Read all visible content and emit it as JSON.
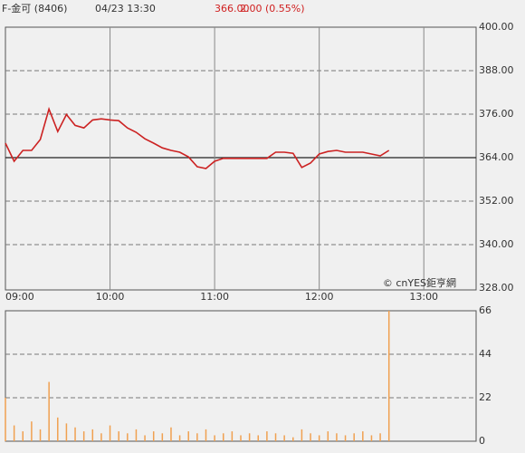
{
  "header": {
    "name": "F-金可 (8406)",
    "datetime": "04/23 13:30",
    "price": "366.00",
    "change": "2.00 (0.55%)"
  },
  "chart_data": [
    {
      "type": "line",
      "categories": [
        "09:00",
        null,
        null,
        null,
        null,
        null,
        null,
        null,
        null,
        null,
        null,
        null,
        "10:00",
        null,
        null,
        null,
        null,
        null,
        null,
        null,
        null,
        null,
        null,
        null,
        "11:00",
        null,
        null,
        null,
        null,
        null,
        null,
        null,
        null,
        null,
        null,
        null,
        "12:00",
        null,
        null,
        null,
        null,
        null,
        null,
        null,
        null,
        null,
        null,
        null,
        "13:00",
        null,
        null,
        null,
        null,
        null,
        null
      ],
      "values": [
        368,
        363,
        366,
        366,
        369,
        377.4,
        371.2,
        375.9,
        372.9,
        372.2,
        374.4,
        374.7,
        374.4,
        374.2,
        372.2,
        371,
        369.2,
        368,
        366.7,
        366,
        365.5,
        364.2,
        361.5,
        361,
        363,
        363.8,
        363.8,
        363.8,
        363.8,
        363.8,
        363.8,
        365.5,
        365.5,
        365.2,
        361.3,
        362.5,
        365,
        365.7,
        366,
        365.5,
        365.5,
        365.5,
        365,
        364.5,
        366,
        null,
        null,
        null,
        null,
        null,
        null,
        null,
        null,
        null,
        null
      ],
      "color": "#cc2222",
      "reference_line": 364,
      "ylim": [
        328,
        400
      ],
      "yticks": [
        {
          "value": 328,
          "label": "328.00"
        },
        {
          "value": 340,
          "label": "340.00"
        },
        {
          "value": 352,
          "label": "352.00"
        },
        {
          "value": 364,
          "label": "364.00"
        },
        {
          "value": 376,
          "label": "376.00"
        },
        {
          "value": 388,
          "label": "388.00"
        },
        {
          "value": 400,
          "label": "400.00"
        }
      ],
      "grid": true,
      "watermark": "© cnYES鉅亨網"
    },
    {
      "type": "bar",
      "values": [
        22,
        8,
        5,
        10,
        6,
        30,
        12,
        9,
        7,
        5,
        6,
        4,
        8,
        5,
        4,
        6,
        3,
        5,
        4,
        7,
        3,
        5,
        4,
        6,
        3,
        4,
        5,
        3,
        4,
        3,
        5,
        4,
        3,
        2,
        6,
        4,
        3,
        5,
        4,
        3,
        4,
        5,
        3,
        4,
        66,
        null,
        null,
        null,
        null,
        null,
        null,
        null,
        null,
        null,
        null
      ],
      "color": "#f0a050",
      "ylim": [
        0,
        66
      ],
      "yticks": [
        0,
        22,
        44,
        66
      ],
      "grid": true
    }
  ]
}
